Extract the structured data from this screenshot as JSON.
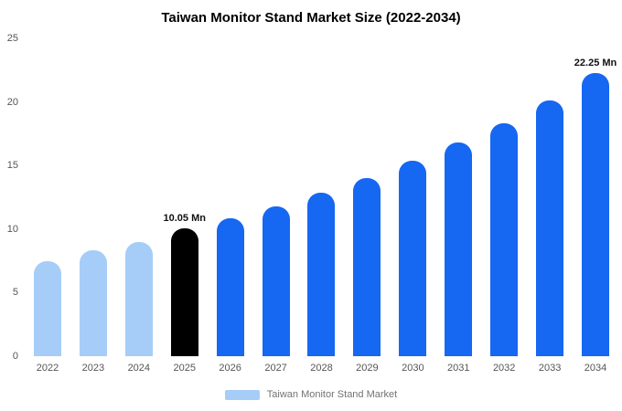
{
  "title": "Taiwan Monitor Stand Market Size (2022-2034)",
  "colors": {
    "light_blue": "#a6cdf8",
    "primary_blue": "#1667f1",
    "highlight_black": "#000000"
  },
  "legend": {
    "label": "Taiwan Monitor Stand Market",
    "swatch_color": "#a6cdf8"
  },
  "chart_data": {
    "type": "bar",
    "title": "Taiwan Monitor Stand Market Size (2022-2034)",
    "categories": [
      "2022",
      "2023",
      "2024",
      "2025",
      "2026",
      "2027",
      "2028",
      "2029",
      "2030",
      "2031",
      "2032",
      "2033",
      "2034"
    ],
    "values": [
      7.5,
      8.3,
      9.0,
      10.05,
      10.85,
      11.75,
      12.85,
      14.0,
      15.4,
      16.8,
      18.35,
      20.1,
      22.25
    ],
    "bar_colors": [
      "#a6cdf8",
      "#a6cdf8",
      "#a6cdf8",
      "#000000",
      "#1667f1",
      "#1667f1",
      "#1667f1",
      "#1667f1",
      "#1667f1",
      "#1667f1",
      "#1667f1",
      "#1667f1",
      "#1667f1"
    ],
    "annotations": [
      {
        "category": "2025",
        "text": "10.05 Mn"
      },
      {
        "category": "2034",
        "text": "22.25 Mn"
      }
    ],
    "xlabel": "",
    "ylabel": "",
    "ylim": [
      0,
      25
    ],
    "y_ticks": [
      0,
      5,
      10,
      15,
      20,
      25
    ],
    "grid": false,
    "legend": [
      "Taiwan Monitor Stand Market"
    ],
    "legend_position": "bottom",
    "unit": "Mn"
  }
}
